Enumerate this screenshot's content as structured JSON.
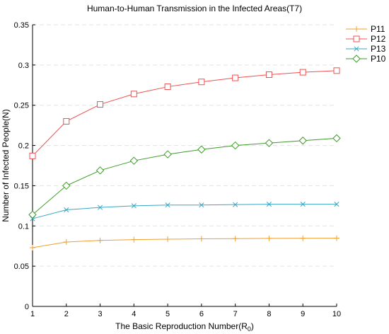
{
  "chart_data": {
    "type": "line",
    "title": "Human-to-Human Transmission in the Infected Areas(T7)",
    "xlabel": "The Basic Reproduction Number(R",
    "xlabel_sub": "0",
    "xlabel_suffix": ")",
    "ylabel": "Number of Infected People(N)",
    "x": [
      1,
      2,
      3,
      4,
      5,
      6,
      7,
      8,
      9,
      10
    ],
    "xlim": [
      1,
      10
    ],
    "ylim": [
      0,
      0.35
    ],
    "yticks": [
      0,
      0.05,
      0.1,
      0.15,
      0.2,
      0.25,
      0.3,
      0.35
    ],
    "ytick_labels": [
      "0",
      "0.05",
      "0.1",
      "0.15",
      "0.2",
      "0.25",
      "0.3",
      "0.35"
    ],
    "grid": "horizontal dashed",
    "legend": "top-right",
    "series": [
      {
        "name": "P11",
        "marker": "plus",
        "color": "#f0a030",
        "values": [
          0.073,
          0.08,
          0.082,
          0.083,
          0.0835,
          0.084,
          0.0842,
          0.0845,
          0.0846,
          0.0848
        ]
      },
      {
        "name": "P12",
        "marker": "square",
        "color": "#f05050",
        "values": [
          0.187,
          0.23,
          0.251,
          0.264,
          0.273,
          0.279,
          0.284,
          0.288,
          0.291,
          0.293
        ]
      },
      {
        "name": "P13",
        "marker": "x",
        "color": "#3aa6c6",
        "values": [
          0.109,
          0.12,
          0.123,
          0.125,
          0.126,
          0.126,
          0.1265,
          0.127,
          0.127,
          0.127
        ]
      },
      {
        "name": "P10",
        "marker": "diamond",
        "color": "#3f9a2a",
        "values": [
          0.114,
          0.15,
          0.169,
          0.181,
          0.189,
          0.195,
          0.2,
          0.203,
          0.206,
          0.209
        ]
      }
    ]
  }
}
